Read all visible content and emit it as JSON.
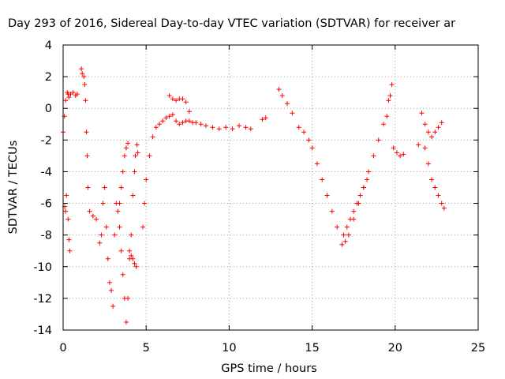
{
  "chart_data": {
    "type": "scatter",
    "title": "Day 293 of 2016, Sidereal Day-to-day VTEC variation (SDTVAR) for receiver ar",
    "xlabel": "GPS time / hours",
    "ylabel": "SDTVAR / TECUs",
    "xlim": [
      0,
      25
    ],
    "ylim": [
      -14,
      4
    ],
    "xticks": [
      "0",
      "5",
      "10",
      "15",
      "20",
      "25"
    ],
    "yticks": [
      "4",
      "2",
      "0",
      "-2",
      "-4",
      "-6",
      "-8",
      "-10",
      "-12",
      "-14"
    ],
    "grid": true,
    "marker": "+",
    "color": "#ff0000",
    "series": [
      {
        "name": "SDTVAR",
        "x": [
          0.0,
          0.08,
          0.15,
          0.25,
          0.3,
          0.35,
          0.45,
          0.6,
          0.75,
          0.85,
          0.1,
          0.15,
          0.2,
          0.3,
          0.35,
          0.4,
          1.1,
          1.15,
          1.25,
          1.3,
          1.35,
          1.4,
          1.45,
          1.5,
          1.6,
          1.8,
          2.0,
          2.2,
          2.3,
          2.4,
          2.5,
          2.6,
          2.7,
          2.8,
          2.9,
          3.0,
          3.1,
          3.2,
          3.4,
          3.5,
          3.6,
          3.7,
          3.8,
          3.9,
          4.0,
          4.1,
          4.2,
          4.3,
          4.35,
          4.45,
          4.5,
          3.3,
          3.4,
          3.5,
          3.6,
          3.7,
          3.8,
          3.9,
          4.0,
          4.1,
          4.2,
          4.3,
          4.4,
          4.8,
          4.9,
          5.0,
          5.2,
          5.4,
          5.6,
          5.8,
          6.0,
          6.2,
          6.4,
          6.6,
          6.8,
          7.0,
          7.2,
          7.4,
          7.6,
          7.8,
          8.0,
          8.3,
          8.6,
          9.0,
          9.4,
          9.8,
          10.2,
          10.6,
          11.0,
          11.3,
          6.4,
          6.6,
          6.8,
          7.0,
          7.2,
          7.4,
          7.6,
          12.0,
          12.2,
          13.0,
          13.2,
          13.5,
          13.8,
          14.2,
          14.5,
          14.8,
          15.0,
          15.3,
          15.6,
          15.9,
          16.2,
          16.5,
          16.8,
          17.0,
          17.2,
          17.5,
          17.8,
          18.1,
          18.4,
          18.7,
          19.0,
          19.3,
          19.5,
          16.9,
          17.1,
          17.3,
          17.5,
          17.7,
          17.9,
          18.1,
          18.3,
          19.6,
          19.7,
          19.8,
          19.9,
          20.1,
          20.3,
          20.5,
          21.4,
          21.6,
          21.8,
          22.0,
          22.2,
          22.4,
          22.6,
          22.8,
          21.8,
          22.0,
          22.2,
          22.4,
          22.6,
          22.8,
          22.95
        ],
        "y": [
          -1.5,
          -0.5,
          0.5,
          1.0,
          0.9,
          0.7,
          0.9,
          1.0,
          0.8,
          0.9,
          -6.2,
          -6.5,
          -5.5,
          -7.0,
          -8.3,
          -9.0,
          2.5,
          2.2,
          2.0,
          1.5,
          0.5,
          -1.5,
          -3.0,
          -5.0,
          -6.5,
          -6.8,
          -7.0,
          -8.5,
          -8.0,
          -6.0,
          -5.0,
          -7.5,
          -9.5,
          -11.0,
          -11.5,
          -12.5,
          -8.0,
          -6.0,
          -7.5,
          -9.0,
          -10.5,
          -12.0,
          -13.5,
          -12.0,
          -9.5,
          -8.0,
          -5.5,
          -4.0,
          -3.0,
          -2.3,
          -2.8,
          -6.5,
          -6.0,
          -5.0,
          -4.0,
          -3.0,
          -2.5,
          -2.2,
          -9.0,
          -9.3,
          -9.5,
          -9.8,
          -10.0,
          -7.5,
          -6.0,
          -4.5,
          -3.0,
          -1.8,
          -1.2,
          -1.0,
          -0.8,
          -0.6,
          -0.5,
          -0.4,
          -0.8,
          -1.0,
          -0.9,
          -0.8,
          -0.8,
          -0.9,
          -0.9,
          -1.0,
          -1.1,
          -1.2,
          -1.3,
          -1.2,
          -1.3,
          -1.1,
          -1.2,
          -1.3,
          0.8,
          0.6,
          0.5,
          0.6,
          0.6,
          0.4,
          -0.2,
          -0.7,
          -0.6,
          1.2,
          0.8,
          0.3,
          -0.3,
          -1.2,
          -1.5,
          -2.0,
          -2.5,
          -3.5,
          -4.5,
          -5.5,
          -6.5,
          -7.5,
          -8.6,
          -8.4,
          -8.0,
          -7.0,
          -6.0,
          -5.0,
          -4.0,
          -3.0,
          -2.0,
          -1.0,
          -0.5,
          -8.0,
          -7.5,
          -7.0,
          -6.5,
          -6.0,
          -5.5,
          -5.0,
          -4.5,
          0.5,
          0.8,
          1.5,
          -2.5,
          -2.8,
          -3.0,
          -2.9,
          -2.3,
          -0.3,
          -1.0,
          -1.5,
          -1.8,
          -1.5,
          -1.2,
          -0.9,
          -2.5,
          -3.5,
          -4.5,
          -5.0,
          -5.5,
          -6.0,
          -6.3
        ]
      }
    ]
  }
}
